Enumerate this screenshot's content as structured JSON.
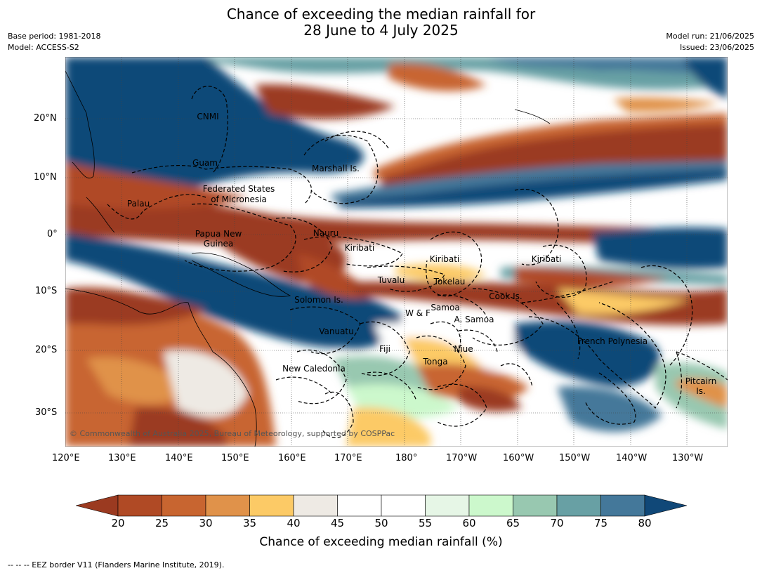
{
  "title_line1": "Chance of exceeding the median rainfall for",
  "title_line2": "28 June to 4 July 2025",
  "base_period": "Base period: 1981-2018",
  "model": "Model: ACCESS-S2",
  "model_run": "Model run: 21/06/2025",
  "issued": "Issued: 23/06/2025",
  "copyright": "© Commonwealth of Australia 2025, Bureau of Meteorology, supported by COSPPac",
  "footer": "--  --  -- EEZ border V11 (Flanders Marine Institute, 2019).",
  "lon_labels": [
    "120°E",
    "130°E",
    "140°E",
    "150°E",
    "160°E",
    "170°E",
    "180°",
    "170°W",
    "160°W",
    "150°W",
    "140°W",
    "130°W"
  ],
  "lat_labels": [
    "20°N",
    "10°N",
    "0°",
    "10°S",
    "20°S",
    "30°S"
  ],
  "regions": [
    {
      "id": "cnmi",
      "text": "CNMI"
    },
    {
      "id": "guam",
      "text": "Guam"
    },
    {
      "id": "marshall",
      "text": "Marshall Is."
    },
    {
      "id": "fsm1",
      "text": "Federated States"
    },
    {
      "id": "fsm2",
      "text": "of Micronesia"
    },
    {
      "id": "palau",
      "text": "Palau"
    },
    {
      "id": "nauru",
      "text": "Nauru"
    },
    {
      "id": "png1",
      "text": "Papua New"
    },
    {
      "id": "png2",
      "text": "Guinea"
    },
    {
      "id": "kiribati1",
      "text": "Kiribati"
    },
    {
      "id": "kiribati2",
      "text": "Kiribati"
    },
    {
      "id": "kiribati3",
      "text": "Kiribati"
    },
    {
      "id": "tuvalu",
      "text": "Tuvalu"
    },
    {
      "id": "tokelau",
      "text": "Tokelau"
    },
    {
      "id": "cook",
      "text": "Cook Is."
    },
    {
      "id": "solomon",
      "text": "Solomon Is."
    },
    {
      "id": "samoa",
      "text": "Samoa"
    },
    {
      "id": "wf",
      "text": "W & F"
    },
    {
      "id": "asamoa",
      "text": "A. Samoa"
    },
    {
      "id": "vanuatu",
      "text": "Vanuatu"
    },
    {
      "id": "fiji",
      "text": "Fiji"
    },
    {
      "id": "niue",
      "text": "Niue"
    },
    {
      "id": "frpoly",
      "text": "French Polynesia"
    },
    {
      "id": "tonga",
      "text": "Tonga"
    },
    {
      "id": "newcal",
      "text": "New Caledonia"
    },
    {
      "id": "pitcairn1",
      "text": "Pitcairn"
    },
    {
      "id": "pitcairn2",
      "text": "Is."
    }
  ],
  "colorbar": {
    "title": "Chance of exceeding median rainfall (%)",
    "tick_labels": [
      "20",
      "25",
      "30",
      "35",
      "40",
      "45",
      "50",
      "55",
      "60",
      "65",
      "70",
      "75",
      "80"
    ],
    "colors": [
      "#9b3a20",
      "#b04a25",
      "#c86530",
      "#e0924a",
      "#fcca66",
      "#eeeae4",
      "#ffffff",
      "#ffffff",
      "#e6f6e6",
      "#ccf8cc",
      "#98c8b0",
      "#68a0a4",
      "#44789a",
      "#104878"
    ]
  }
}
